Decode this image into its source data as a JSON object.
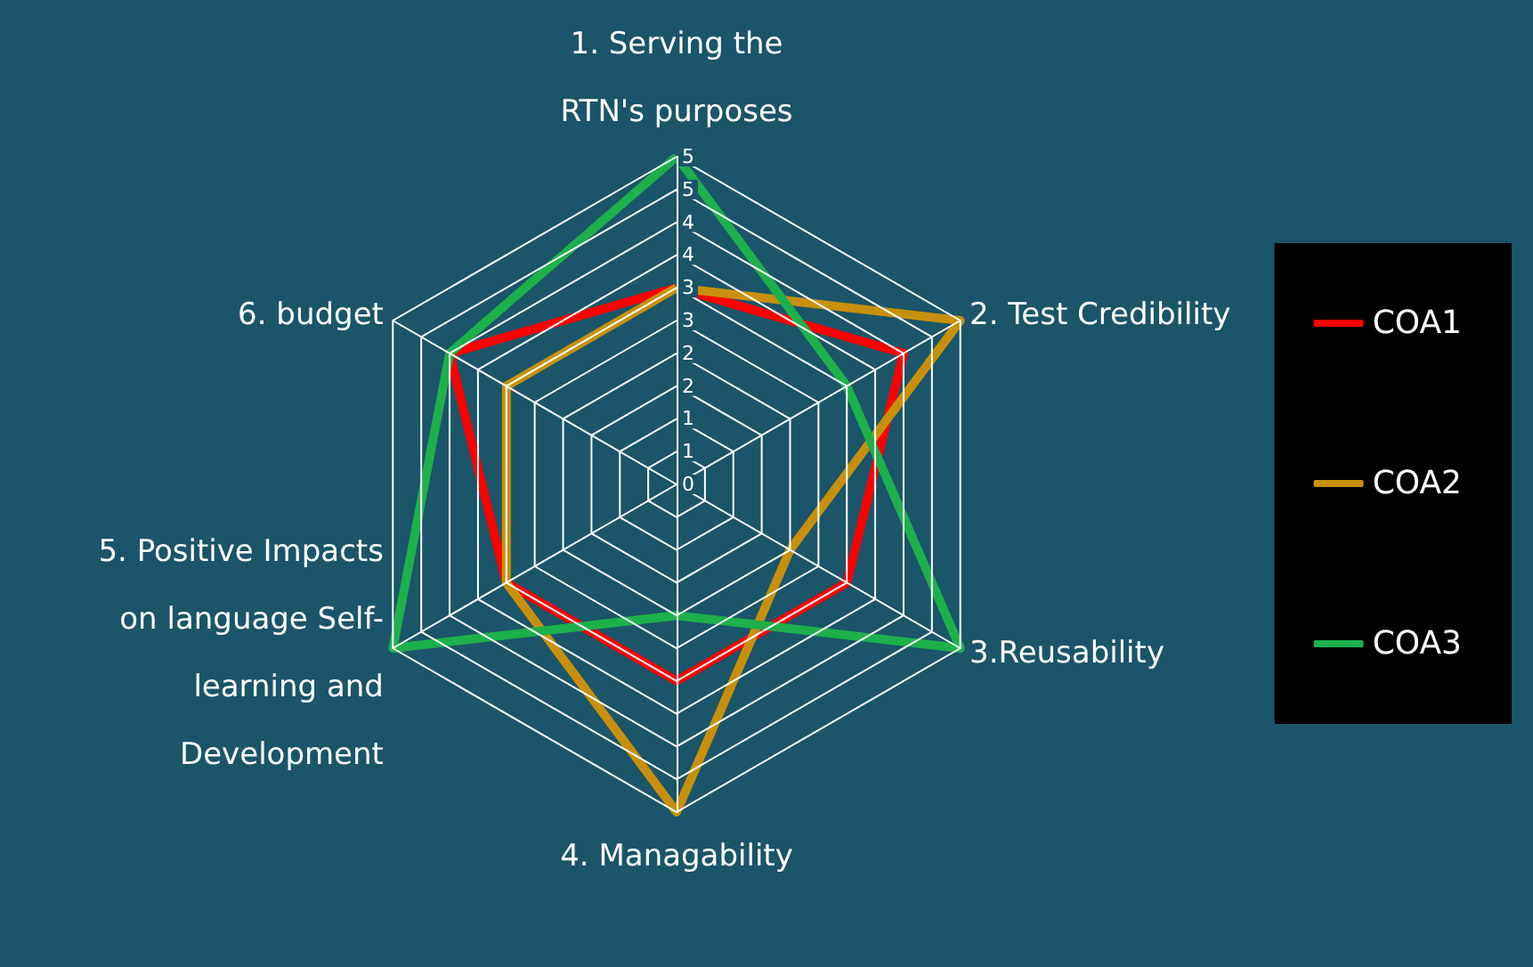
{
  "chart_data": {
    "type": "radar",
    "categories": [
      "1. Serving the RTN's purposes",
      "2. Test Credibility",
      "3.Reusability",
      "4. Managability",
      "5. Positive Impacts on language Self-learning and Development",
      "6. budget"
    ],
    "series": [
      {
        "name": "COA1",
        "color": "#ff0000",
        "values": [
          3,
          4,
          3,
          3,
          3,
          4
        ]
      },
      {
        "name": "COA2",
        "color": "#c8900a",
        "values": [
          3,
          5,
          2,
          5,
          3,
          3
        ]
      },
      {
        "name": "COA3",
        "color": "#1db04b",
        "values": [
          5,
          3,
          5,
          2,
          5,
          4
        ]
      }
    ],
    "ylim": [
      0,
      5
    ],
    "yticks": [
      {
        "value": 0,
        "label": "0"
      },
      {
        "value": 0.5,
        "label": "1"
      },
      {
        "value": 1,
        "label": "1"
      },
      {
        "value": 1.5,
        "label": "2"
      },
      {
        "value": 2,
        "label": "2"
      },
      {
        "value": 2.5,
        "label": "3"
      },
      {
        "value": 3,
        "label": "3"
      },
      {
        "value": 3.5,
        "label": "4"
      },
      {
        "value": 4,
        "label": "4"
      },
      {
        "value": 4.5,
        "label": "5"
      },
      {
        "value": 5,
        "label": "5"
      }
    ],
    "grid": true,
    "legend": "right",
    "marker": "none",
    "line_style": "solid"
  }
}
